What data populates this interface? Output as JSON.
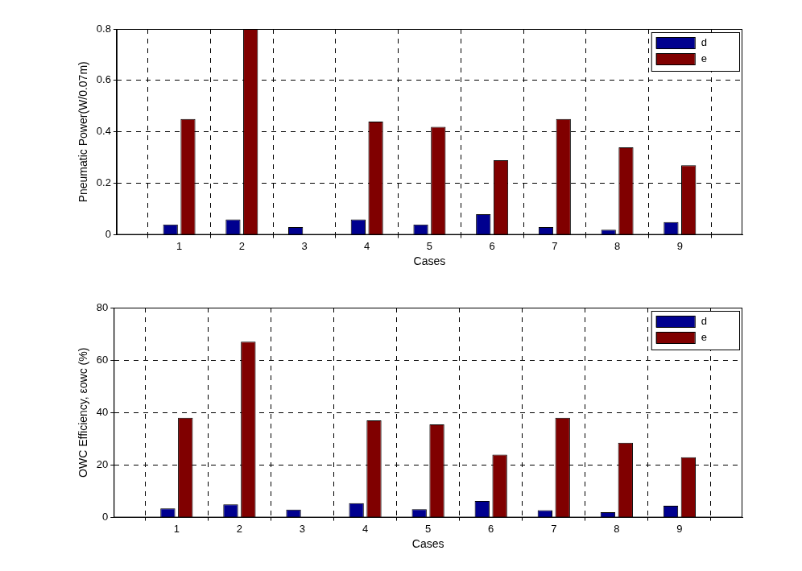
{
  "chart_data": [
    {
      "type": "bar",
      "x_label": "Cases",
      "y_label": "Pneumatic Power(W/0.07m)",
      "x": [
        1,
        2,
        3,
        4,
        5,
        6,
        7,
        8,
        9
      ],
      "xlim": [
        0,
        10
      ],
      "xticks": [
        1,
        2,
        3,
        4,
        5,
        6,
        7,
        8,
        9
      ],
      "ylim": [
        0,
        0.8
      ],
      "yticks": [
        0,
        0.2,
        0.4,
        0.6,
        0.8
      ],
      "grid": true,
      "legend": "upper right",
      "series": [
        {
          "name": "d",
          "color": "#00008f",
          "values": [
            0.04,
            0.06,
            0.03,
            0.06,
            0.04,
            0.08,
            0.03,
            0.02,
            0.05
          ]
        },
        {
          "name": "e",
          "color": "#800000",
          "values": [
            0.45,
            0.8,
            0,
            0.44,
            0.42,
            0.29,
            0.45,
            0.34,
            0.27
          ]
        }
      ]
    },
    {
      "type": "bar",
      "x_label": "Cases",
      "y_label": "OWC Efficiency, εowc (%)",
      "x": [
        1,
        2,
        3,
        4,
        5,
        6,
        7,
        8,
        9
      ],
      "xlim": [
        0,
        10
      ],
      "xticks": [
        1,
        2,
        3,
        4,
        5,
        6,
        7,
        8,
        9
      ],
      "ylim": [
        0,
        80
      ],
      "yticks": [
        0,
        20,
        40,
        60,
        80
      ],
      "grid": true,
      "legend": "upper right",
      "series": [
        {
          "name": "d",
          "color": "#00008f",
          "values": [
            3.5,
            5,
            3,
            5.5,
            3.2,
            6.3,
            2.8,
            2,
            4.5
          ]
        },
        {
          "name": "e",
          "color": "#800000",
          "values": [
            38,
            67,
            0,
            37,
            35.5,
            24,
            38,
            28.5,
            23
          ]
        }
      ]
    }
  ]
}
